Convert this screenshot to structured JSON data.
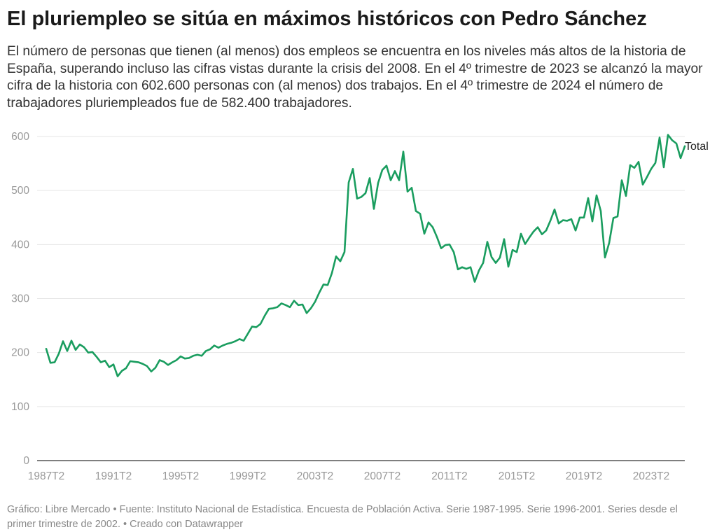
{
  "title": "El pluriempleo se sitúa en máximos históricos con Pedro Sánchez",
  "subtitle": "El número de personas que tienen (al menos) dos empleos se encuentra en los niveles más altos de la historia de España, superando incluso las cifras vistas durante la crisis del 2008. En el 4º trimestre de 2023 se alcanzó la mayor cifra de la historia con 602.600 personas con (al menos) dos trabajos. En el 4º trimestre de 2024 el número de trabajadores pluriempleados fue de 582.400 trabajadores.",
  "notes": "Gráfico: Libre Mercado • Fuente: Instituto Nacional de Estadística. Encuesta de Población Activa. Serie 1987-1995. Serie 1996-2001. Series desde el primer trimestre de 2002. • Creado con Datawrapper",
  "colors": {
    "line": "#1a9d5f",
    "grid": "#e6e6e6",
    "axis": "#333333",
    "tick_text": "#999999"
  },
  "chart_data": {
    "type": "line",
    "title": "",
    "xlabel": "",
    "ylabel": "",
    "ylim": [
      0,
      600
    ],
    "yticks": [
      "0",
      "100",
      "200",
      "300",
      "400",
      "500",
      "600"
    ],
    "xticks": [
      "1987T2",
      "1991T2",
      "1995T2",
      "1999T2",
      "2003T2",
      "2007T2",
      "2011T2",
      "2015T2",
      "2019T2",
      "2023T2"
    ],
    "grid": true,
    "start_period": "1987T2",
    "end_period": "2024T4",
    "series": [
      {
        "name": "Total",
        "values": [
          207,
          181,
          182,
          198,
          221,
          203,
          222,
          205,
          215,
          210,
          200,
          201,
          192,
          182,
          185,
          173,
          178,
          156,
          166,
          171,
          184,
          183,
          182,
          179,
          175,
          165,
          172,
          186,
          183,
          177,
          182,
          186,
          193,
          189,
          190,
          194,
          196,
          194,
          203,
          206,
          213,
          209,
          213,
          216,
          218,
          221,
          225,
          222,
          235,
          248,
          247,
          253,
          268,
          281,
          282,
          284,
          291,
          288,
          284,
          296,
          288,
          289,
          273,
          282,
          294,
          311,
          326,
          325,
          347,
          378,
          369,
          386,
          515,
          540,
          485,
          488,
          495,
          523,
          466,
          514,
          538,
          546,
          519,
          536,
          519,
          572,
          498,
          505,
          462,
          457,
          420,
          441,
          432,
          414,
          393,
          399,
          400,
          386,
          354,
          358,
          355,
          358,
          331,
          352,
          366,
          405,
          377,
          366,
          376,
          410,
          359,
          390,
          386,
          420,
          401,
          413,
          424,
          432,
          419,
          426,
          444,
          465,
          439,
          445,
          444,
          447,
          426,
          450,
          450,
          486,
          443,
          491,
          462,
          376,
          403,
          449,
          452,
          519,
          490,
          547,
          542,
          553,
          511,
          525,
          540,
          551,
          598,
          543,
          603,
          593,
          587,
          560,
          582
        ]
      }
    ]
  }
}
